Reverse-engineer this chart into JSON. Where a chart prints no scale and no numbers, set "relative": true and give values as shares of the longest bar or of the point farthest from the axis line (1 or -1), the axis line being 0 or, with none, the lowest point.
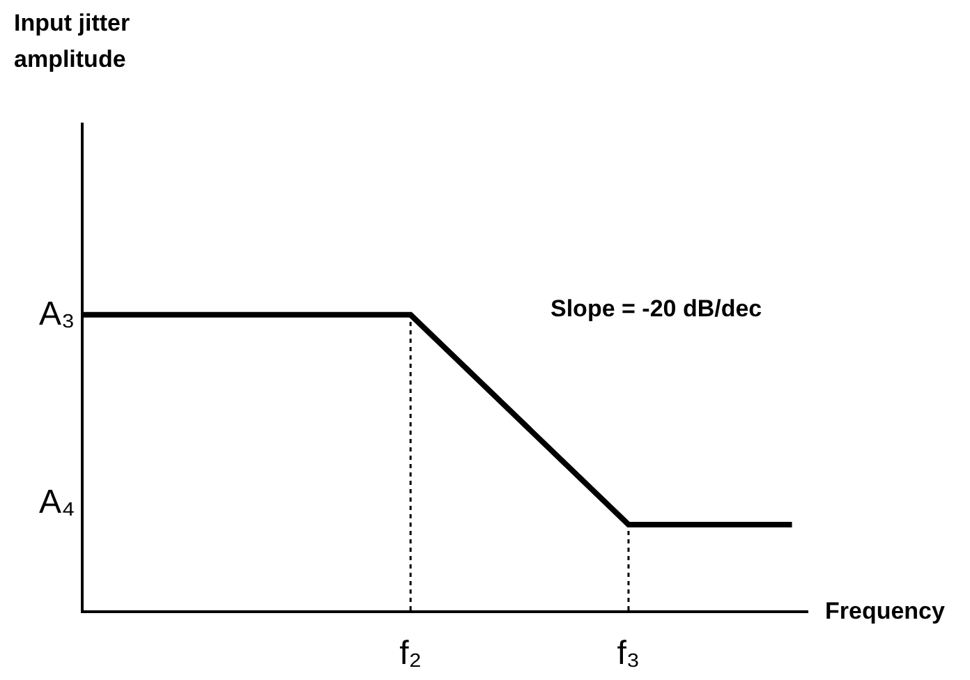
{
  "chart_data": {
    "type": "line",
    "relative": true,
    "xlabel": "Frequency",
    "categories": [
      null,
      null,
      null,
      null,
      null,
      null,
      "f₂",
      null,
      null,
      null,
      "f₃",
      null,
      null,
      null
    ],
    "series": [
      {
        "color": "#000000",
        "values": [
          1,
          null,
          null,
          null,
          null,
          null,
          1,
          null,
          null,
          null,
          0.29,
          null,
          null,
          0.29
        ]
      }
    ],
    "ref_lines": [
      {
        "axis": "x",
        "value": "f₂",
        "line_style": "dotted",
        "color": "#000000"
      },
      {
        "axis": "x",
        "value": "f₃",
        "line_style": "dotted",
        "color": "#000000"
      }
    ],
    "annotations": [
      "Input jitter amplitude",
      "A₃",
      "A₄",
      "Slope = -20 dB/dec"
    ],
    "grid": false,
    "legend": false,
    "marker": "none",
    "line_style": "solid"
  }
}
